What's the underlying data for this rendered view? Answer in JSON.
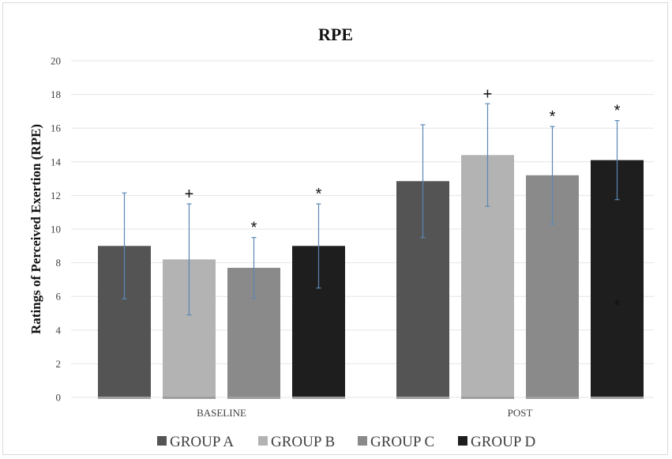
{
  "chart_data": {
    "type": "bar",
    "title": "RPE",
    "xlabel": "",
    "ylabel": "Ratings of Perceived Exertion (RPE)",
    "ylim": [
      0,
      20
    ],
    "yticks": [
      "0",
      "2",
      "4",
      "6",
      "8",
      "10",
      "12",
      "14",
      "16",
      "18",
      "20"
    ],
    "categories": [
      "BASELINE",
      "POST"
    ],
    "grid": true,
    "legend_position": "bottom",
    "series": [
      {
        "name": "GROUP A",
        "color": "#545454",
        "values": [
          9.0,
          12.85
        ],
        "error": [
          3.15,
          3.35
        ],
        "markers": [
          "",
          ""
        ]
      },
      {
        "name": "GROUP B",
        "color": "#b3b3b3",
        "values": [
          8.2,
          14.4
        ],
        "error": [
          3.3,
          3.05
        ],
        "markers": [
          "+",
          "+"
        ]
      },
      {
        "name": "GROUP C",
        "color": "#8a8a8a",
        "values": [
          7.7,
          13.2
        ],
        "error": [
          1.8,
          2.9
        ],
        "markers": [
          "*",
          "*"
        ]
      },
      {
        "name": "GROUP D",
        "color": "#1e1e1e",
        "values": [
          9.0,
          14.1
        ],
        "error": [
          2.5,
          2.35
        ],
        "markers": [
          "*",
          "*"
        ]
      }
    ],
    "annotations": [
      {
        "text": "*",
        "category": "POST",
        "series": "GROUP D",
        "y": 5.6
      }
    ]
  }
}
